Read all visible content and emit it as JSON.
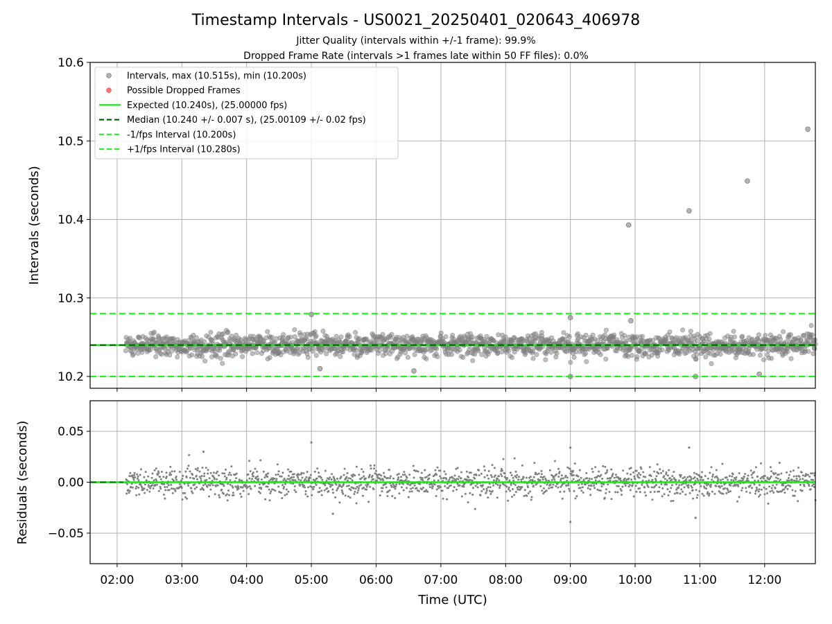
{
  "chart_data": [
    {
      "type": "scatter",
      "title": "Timestamp Intervals - US0021_20250401_020643_406978",
      "subtitle_lines": [
        "Jitter Quality (intervals within +/-1 frame): 99.9%",
        "Dropped Frame Rate (intervals >1 frames late within 50 FF files): 0.0%"
      ],
      "xlabel": "",
      "ylabel": "Intervals (seconds)",
      "xlim": [
        "01:35",
        "12:47"
      ],
      "ylim": [
        10.185,
        10.6
      ],
      "y_ticks": [
        "10.2",
        "10.3",
        "10.4",
        "10.5",
        "10.6"
      ],
      "grid": true,
      "legend_position": "top-left",
      "point_color": "#808080",
      "dropped_color": "#ff5555",
      "series": [
        {
          "name": "Intervals, max (10.515s), min (10.200s)",
          "kind": "scatter",
          "color": "#808080",
          "points": [
            {
              "x": "09:54",
              "y": 10.393
            },
            {
              "x": "10:50",
              "y": 10.411
            },
            {
              "x": "11:44",
              "y": 10.449
            },
            {
              "x": "12:40",
              "y": 10.515
            },
            {
              "x": "09:00",
              "y": 10.275
            },
            {
              "x": "05:00",
              "y": 10.279
            },
            {
              "x": "09:56",
              "y": 10.271
            },
            {
              "x": "09:00",
              "y": 10.2
            },
            {
              "x": "10:56",
              "y": 10.2
            },
            {
              "x": "06:35",
              "y": 10.207
            },
            {
              "x": "05:08",
              "y": 10.21
            },
            {
              "x": "11:55",
              "y": 10.203
            }
          ],
          "band_center": 10.24,
          "band_spread": 0.007,
          "x_range": [
            "02:08",
            "12:47"
          ]
        },
        {
          "name": "Possible Dropped Frames",
          "kind": "scatter",
          "color": "#ff5555",
          "points": []
        },
        {
          "name": "Expected (10.240s), (25.00000 fps)",
          "kind": "hline",
          "y": 10.24,
          "color": "#1fe01f",
          "style": "solid"
        },
        {
          "name": "Median (10.240 +/- 0.007 s), (25.00109 +/- 0.02 fps)",
          "kind": "hline",
          "y": 10.24,
          "color": "#006400",
          "style": "dashed"
        },
        {
          "name": "-1/fps Interval (10.200s)",
          "kind": "hline",
          "y": 10.2,
          "color": "#22ee22",
          "style": "dashed"
        },
        {
          "name": "+1/fps Interval (10.280s)",
          "kind": "hline",
          "y": 10.28,
          "color": "#22ee22",
          "style": "dashed"
        }
      ]
    },
    {
      "type": "scatter",
      "title": "",
      "xlabel": "Time (UTC)",
      "ylabel": "Residuals (seconds)",
      "xlim": [
        "01:35",
        "12:47"
      ],
      "ylim": [
        -0.08,
        0.08
      ],
      "y_ticks": [
        "−0.05",
        "0.00",
        "0.05"
      ],
      "x_ticks": [
        "02:00",
        "03:00",
        "04:00",
        "05:00",
        "06:00",
        "07:00",
        "08:00",
        "09:00",
        "10:00",
        "11:00",
        "12:00"
      ],
      "grid": true,
      "series": [
        {
          "name": "Residuals",
          "kind": "scatter",
          "color": "#808080",
          "points": [
            {
              "x": "05:00",
              "y": 0.039
            },
            {
              "x": "09:00",
              "y": 0.034
            },
            {
              "x": "10:50",
              "y": 0.034
            },
            {
              "x": "09:00",
              "y": -0.039
            },
            {
              "x": "10:56",
              "y": -0.035
            },
            {
              "x": "05:20",
              "y": -0.031
            },
            {
              "x": "03:20",
              "y": 0.03
            }
          ],
          "band_center": 0.0,
          "band_spread": 0.007,
          "x_range": [
            "02:08",
            "12:47"
          ]
        },
        {
          "name": "Zero line",
          "kind": "hline",
          "y": 0.0,
          "color": "#1fe01f",
          "style": "solid"
        }
      ]
    }
  ]
}
